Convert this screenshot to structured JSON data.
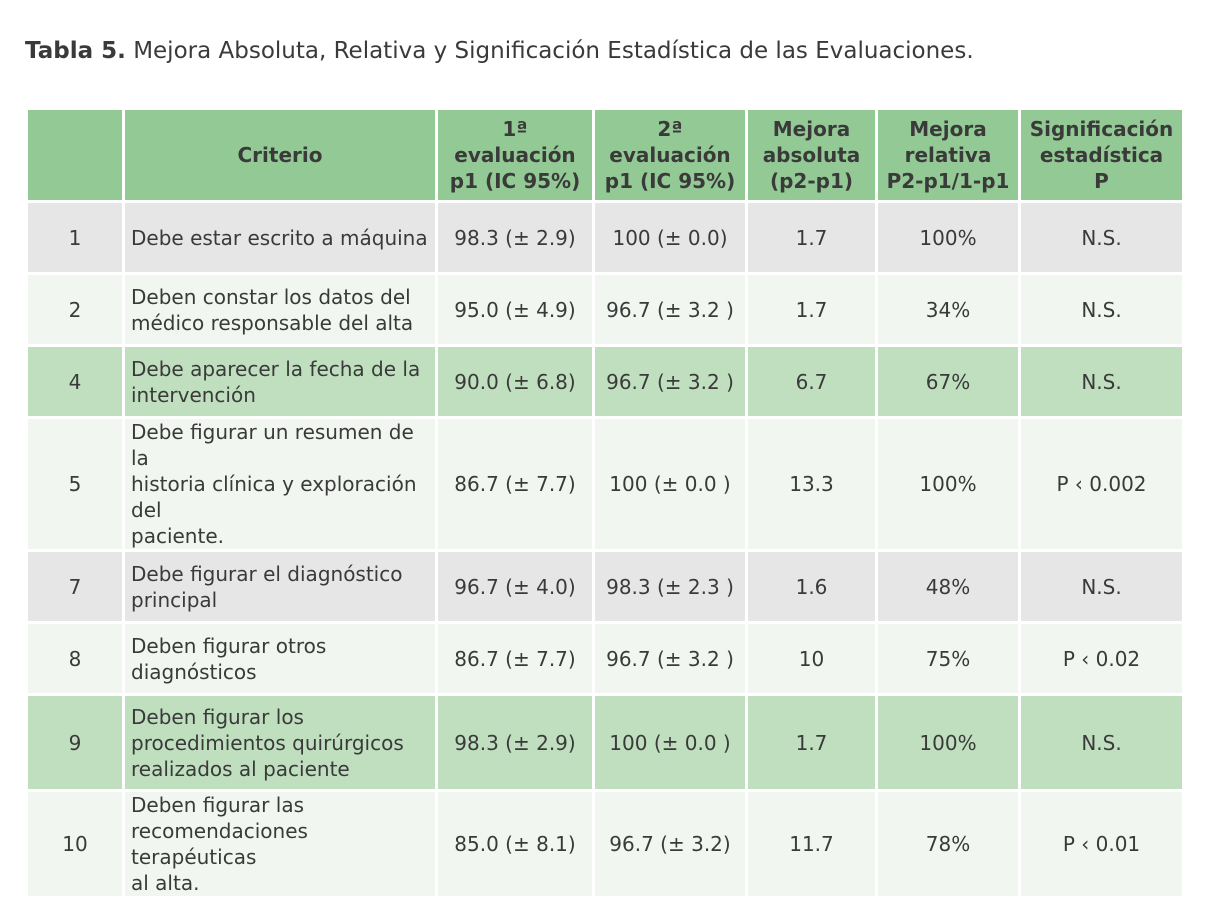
{
  "caption": {
    "label": "Tabla 5.",
    "text": "Mejora Absoluta, Relativa y Significación Estadística de las Evaluaciones."
  },
  "headers": {
    "num": "",
    "criterio": "Criterio",
    "eval1": [
      "1ª evaluación",
      "p1 (IC 95%)"
    ],
    "eval2": [
      "2ª evaluación",
      "p1 (IC 95%)"
    ],
    "abs": [
      "Mejora",
      "absoluta",
      "(p2-p1)"
    ],
    "rel": [
      "Mejora",
      "relativa",
      "P2-p1/1-p1"
    ],
    "sig": [
      "Significación",
      "estadística",
      "P"
    ]
  },
  "rows": [
    {
      "n": "1",
      "criterio": [
        "Debe estar escrito a máquina"
      ],
      "e1": "98.3 (± 2.9)",
      "e2": "100 (± 0.0)",
      "abs": "1.7",
      "rel": "100%",
      "sig": "N.S.",
      "shade": "gray"
    },
    {
      "n": "2",
      "criterio": [
        "Deben constar los datos del",
        "médico responsable del alta"
      ],
      "e1": "95.0 (± 4.9)",
      "e2": "96.7 (± 3.2 )",
      "abs": "1.7",
      "rel": "34%",
      "sig": "N.S.",
      "shade": "light"
    },
    {
      "n": "4",
      "criterio": [
        "Debe aparecer la fecha de la",
        "intervención"
      ],
      "e1": "90.0 (± 6.8)",
      "e2": "96.7 (± 3.2 )",
      "abs": "6.7",
      "rel": "67%",
      "sig": "N.S.",
      "shade": "green"
    },
    {
      "n": "5",
      "criterio": [
        "Debe figurar un resumen de la",
        "historia clínica y exploración del",
        "paciente."
      ],
      "e1": "86.7 (± 7.7)",
      "e2": "100 (± 0.0 )",
      "abs": "13.3",
      "rel": "100%",
      "sig": "P ‹ 0.002",
      "shade": "light"
    },
    {
      "n": "7",
      "criterio": [
        "Debe figurar el diagnóstico",
        "principal"
      ],
      "e1": "96.7 (± 4.0)",
      "e2": "98.3 (± 2.3 )",
      "abs": "1.6",
      "rel": "48%",
      "sig": "N.S.",
      "shade": "gray"
    },
    {
      "n": "8",
      "criterio": [
        "Deben figurar otros",
        "diagnósticos"
      ],
      "e1": "86.7 (± 7.7)",
      "e2": "96.7 (± 3.2 )",
      "abs": "10",
      "rel": "75%",
      "sig": "P ‹ 0.02",
      "shade": "light"
    },
    {
      "n": "9",
      "criterio": [
        "Deben figurar los",
        "procedimientos quirúrgicos",
        "realizados al paciente"
      ],
      "e1": "98.3 (± 2.9)",
      "e2": "100 (± 0.0 )",
      "abs": "1.7",
      "rel": "100%",
      "sig": "N.S.",
      "shade": "green"
    },
    {
      "n": "10",
      "criterio": [
        "Deben figurar las",
        "recomendaciones terapéuticas",
        "al alta."
      ],
      "e1": "85.0 (± 8.1)",
      "e2": "96.7 (± 3.2)",
      "abs": "11.7",
      "rel": "78%",
      "sig": "P ‹ 0.01",
      "shade": "light"
    }
  ]
}
